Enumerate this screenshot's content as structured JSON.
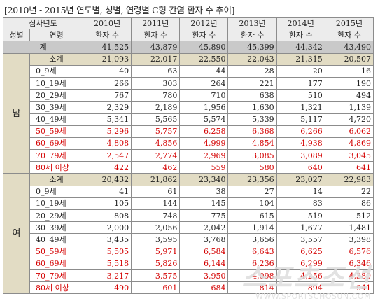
{
  "title": "[2010년 - 2015년 연도별, 성별, 연령별 C형 간염 환자 수 추이]",
  "header": {
    "period_label": "심사년도",
    "sex_label": "성별",
    "age_label": "연령",
    "years": [
      "2010년",
      "2011년",
      "2012년",
      "2013년",
      "2014년",
      "2015년"
    ],
    "metric": "환자 수"
  },
  "total": {
    "label": "계",
    "values": [
      "41,525",
      "43,879",
      "45,890",
      "45,399",
      "44,342",
      "43,490"
    ]
  },
  "groups": [
    {
      "sex": "남",
      "subtotal": {
        "label": "소계",
        "values": [
          "21,093",
          "22,017",
          "22,550",
          "22,043",
          "21,315",
          "20,507"
        ]
      },
      "rows": [
        {
          "age": "0_9세",
          "values": [
            "40",
            "63",
            "44",
            "28",
            "20",
            "16"
          ],
          "red": false
        },
        {
          "age": "10_19세",
          "values": [
            "266",
            "303",
            "264",
            "221",
            "177",
            "190"
          ],
          "red": false
        },
        {
          "age": "20_29세",
          "values": [
            "767",
            "780",
            "710",
            "638",
            "510",
            "494"
          ],
          "red": false
        },
        {
          "age": "30_39세",
          "values": [
            "2,329",
            "2,189",
            "1,956",
            "1,630",
            "1,321",
            "1,139"
          ],
          "red": false
        },
        {
          "age": "40_49세",
          "values": [
            "5,341",
            "5,565",
            "5,574",
            "5,339",
            "5,117",
            "4,720"
          ],
          "red": false
        },
        {
          "age": "50_59세",
          "values": [
            "5,296",
            "5,757",
            "6,258",
            "6,368",
            "6,266",
            "6,062"
          ],
          "red": true
        },
        {
          "age": "60_69세",
          "values": [
            "4,808",
            "4,856",
            "4,999",
            "4,854",
            "4,938",
            "4,869"
          ],
          "red": true
        },
        {
          "age": "70_79세",
          "values": [
            "2,547",
            "2,774",
            "2,969",
            "3,085",
            "3,089",
            "3,045"
          ],
          "red": true
        },
        {
          "age": "80세 이상",
          "values": [
            "422",
            "462",
            "559",
            "580",
            "640",
            "641"
          ],
          "red": true
        }
      ]
    },
    {
      "sex": "여",
      "subtotal": {
        "label": "소계",
        "values": [
          "20,432",
          "21,862",
          "23,340",
          "23,356",
          "23,027",
          "22,983"
        ]
      },
      "rows": [
        {
          "age": "0_9세",
          "values": [
            "41",
            "61",
            "38",
            "27",
            "14",
            "22"
          ],
          "red": false
        },
        {
          "age": "10_19세",
          "values": [
            "105",
            "144",
            "145",
            "104",
            "83",
            "86"
          ],
          "red": false
        },
        {
          "age": "20_29세",
          "values": [
            "808",
            "748",
            "775",
            "615",
            "519",
            "512"
          ],
          "red": false
        },
        {
          "age": "30_39세",
          "values": [
            "2,000",
            "2,056",
            "2,042",
            "1,914",
            "1,677",
            "1,481"
          ],
          "red": false
        },
        {
          "age": "40_49세",
          "values": [
            "3,435",
            "3,595",
            "3,768",
            "3,656",
            "3,557",
            "3,398"
          ],
          "red": false
        },
        {
          "age": "50_59세",
          "values": [
            "5,505",
            "5,971",
            "6,584",
            "6,643",
            "6,625",
            "6,576"
          ],
          "red": true
        },
        {
          "age": "60_69세",
          "values": [
            "5,518",
            "5,826",
            "6,144",
            "6,236",
            "6,299",
            "6,346"
          ],
          "red": true
        },
        {
          "age": "70_79세",
          "values": [
            "3,217",
            "3,575",
            "3,950",
            "4,098",
            "4,256",
            "4,380"
          ],
          "red": true
        },
        {
          "age": "80세 이상",
          "values": [
            "490",
            "601",
            "684",
            "814",
            "894",
            "941"
          ],
          "red": true
        }
      ]
    }
  ],
  "watermark": {
    "main": "스포츠조선",
    "url": "WWW.SPORTSCHOSUN.COM"
  }
}
